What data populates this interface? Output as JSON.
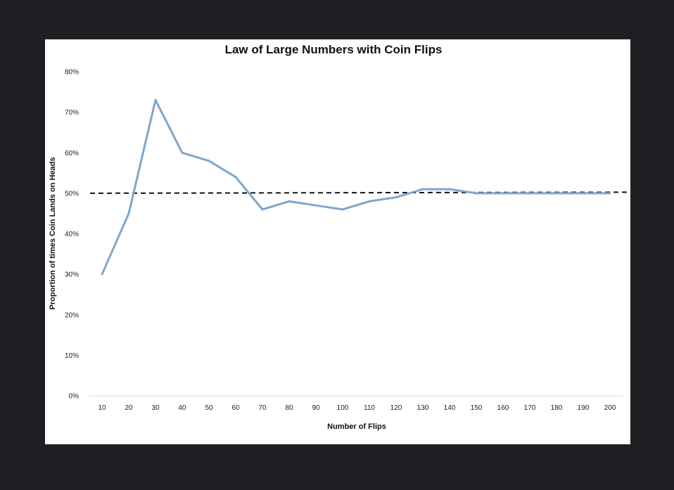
{
  "chart_data": {
    "type": "line",
    "title": "Law of Large Numbers with Coin Flips",
    "xlabel": "Number of Flips",
    "ylabel": "Proportion of times Coin Lands on Heads",
    "categories": [
      "10",
      "20",
      "30",
      "40",
      "50",
      "60",
      "70",
      "80",
      "90",
      "100",
      "110",
      "120",
      "130",
      "140",
      "150",
      "160",
      "170",
      "180",
      "190",
      "200"
    ],
    "series": [
      {
        "values": [
          0.3,
          0.45,
          0.73,
          0.6,
          0.58,
          0.54,
          0.46,
          0.48,
          0.47,
          0.46,
          0.48,
          0.49,
          0.51,
          0.51,
          0.5,
          0.5,
          0.5,
          0.5,
          0.5,
          0.5
        ],
        "color": "#7ea6cf"
      }
    ],
    "reference_line": {
      "y": 0.5,
      "style": "dashed",
      "color": "#111111"
    },
    "ylim": [
      0,
      0.8
    ],
    "yticks": [
      "0%",
      "10%",
      "20%",
      "30%",
      "40%",
      "50%",
      "60%",
      "70%",
      "80%"
    ],
    "grid": false,
    "legend": "none"
  }
}
